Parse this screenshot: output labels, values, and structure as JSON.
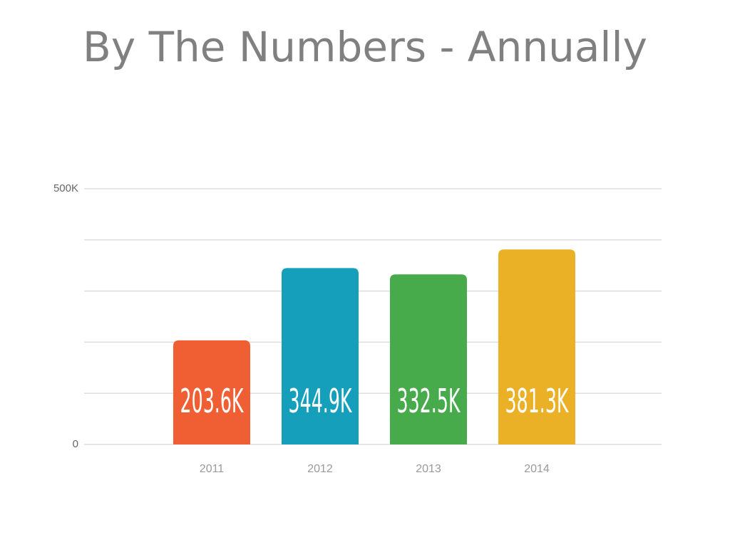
{
  "chart_data": {
    "type": "bar",
    "title": "By The Numbers - Annually",
    "categories": [
      "2011",
      "2012",
      "2013",
      "2014"
    ],
    "values": [
      203600,
      344900,
      332500,
      381300
    ],
    "value_labels": [
      "203.6K",
      "344.9K",
      "332.5K",
      "381.3K"
    ],
    "colors": [
      "#f05f33",
      "#159fba",
      "#47aa4b",
      "#eab127"
    ],
    "ylim": [
      0,
      500000
    ],
    "yticks": [
      0,
      {
        "value": 500000,
        "label": "500K"
      }
    ],
    "gridlines": [
      100000,
      200000,
      300000,
      400000
    ],
    "grid": true
  }
}
